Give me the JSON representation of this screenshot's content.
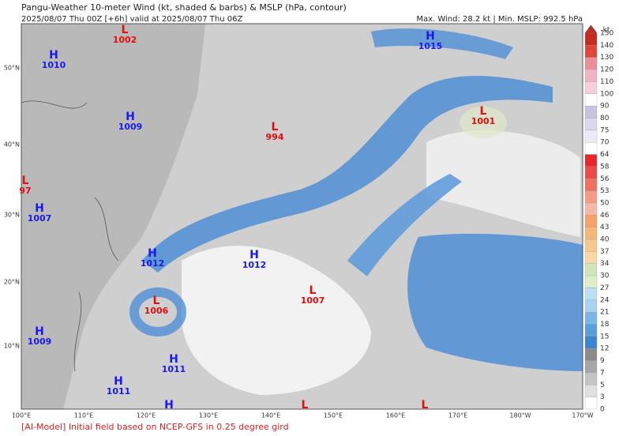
{
  "header": {
    "title": "Pangu-Weather 10-meter Wind (kt, shaded & barbs) & MSLP (hPa, contour)",
    "subtitle": "2025/08/07 Thu 00Z [+6h] valid at 2025/08/07 Thu 06Z",
    "stats": "Max. Wind: 28.2 kt | Min. MSLP: 992.5 hPa"
  },
  "map": {
    "latitude_labels": [
      "50°N",
      "40°N",
      "30°N",
      "20°N",
      "10°N"
    ],
    "longitude_labels": [
      "100°E",
      "110°E",
      "120°E",
      "130°E",
      "140°E",
      "150°E",
      "160°E",
      "170°E",
      "180°W",
      "170°W"
    ],
    "centers": [
      {
        "letter": "H",
        "value": "1010"
      },
      {
        "letter": "L",
        "value": "1002"
      },
      {
        "letter": "H",
        "value": "1015"
      },
      {
        "letter": "H",
        "value": "1009"
      },
      {
        "letter": "L",
        "value": "994"
      },
      {
        "letter": "L",
        "value": "1001"
      },
      {
        "letter": "L",
        "value": "97"
      },
      {
        "letter": "H",
        "value": "1007"
      },
      {
        "letter": "H",
        "value": "1012"
      },
      {
        "letter": "H",
        "value": "1012"
      },
      {
        "letter": "L",
        "value": "1007"
      },
      {
        "letter": "L",
        "value": "1006"
      },
      {
        "letter": "H",
        "value": "1009"
      },
      {
        "letter": "H",
        "value": "1011"
      },
      {
        "letter": "H",
        "value": "1011"
      },
      {
        "letter": "H"
      },
      {
        "letter": "L"
      },
      {
        "letter": "L"
      }
    ]
  },
  "colorbar": {
    "unit": "kt",
    "labels": [
      150,
      140,
      130,
      120,
      110,
      100,
      90,
      80,
      75,
      70,
      64,
      58,
      56,
      53,
      50,
      46,
      43,
      40,
      37,
      34,
      30,
      27,
      24,
      21,
      18,
      15,
      12,
      9,
      7,
      5,
      3,
      0
    ],
    "colors": [
      "#c62a1e",
      "#e0453a",
      "#e88f9a",
      "#f0b4c4",
      "#f6cfdb",
      "#ffffff",
      "#c8c3e0",
      "#dcd8ec",
      "#eeeaf5",
      "#ffffff",
      "#e8262a",
      "#ec4a4a",
      "#f07060",
      "#f49a88",
      "#f6b8a6",
      "#f4a36a",
      "#f5b67a",
      "#f7c88e",
      "#f9d8a4",
      "#cfe6b8",
      "#dcefc9",
      "#bcdff2",
      "#a8d2ef",
      "#7ab7e6",
      "#5a9fdc",
      "#3d86cf",
      "#8a8a8a",
      "#a6a6a6",
      "#c4c4c4",
      "#e0e0e0",
      "#ffffff"
    ]
  },
  "footer": "[AI-Model] Initial field based on NCEP-GFS in 0.25 degree gird"
}
